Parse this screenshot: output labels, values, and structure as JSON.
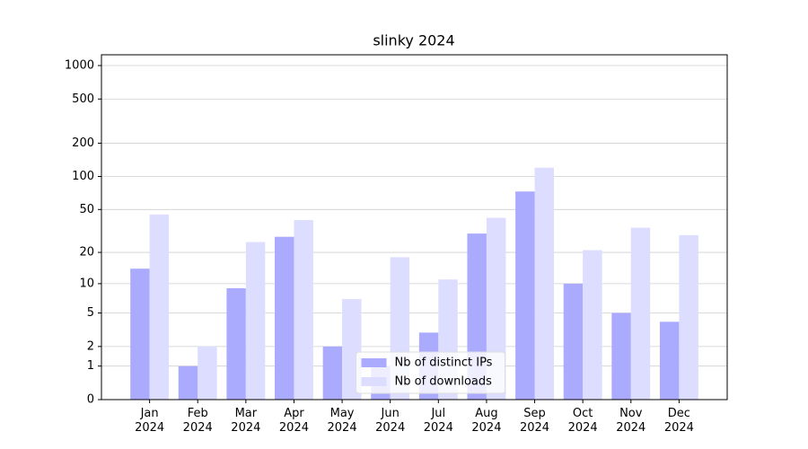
{
  "chart_data": {
    "type": "bar",
    "title": "slinky 2024",
    "categories": [
      "Jan\n2024",
      "Feb\n2024",
      "Mar\n2024",
      "Apr\n2024",
      "May\n2024",
      "Jun\n2024",
      "Jul\n2024",
      "Aug\n2024",
      "Sep\n2024",
      "Oct\n2024",
      "Nov\n2024",
      "Dec\n2024"
    ],
    "series": [
      {
        "name": "Nb of distinct IPs",
        "color": "#aaaaff",
        "values": [
          14,
          1,
          9,
          28,
          2,
          1,
          3,
          30,
          73,
          10,
          5,
          4
        ]
      },
      {
        "name": "Nb of downloads",
        "color": "#ddddff",
        "values": [
          45,
          2,
          25,
          40,
          7,
          18,
          11,
          42,
          120,
          21,
          34,
          29
        ]
      }
    ],
    "yscale": "log1p",
    "ylim": [
      0,
      1250
    ],
    "yticks": [
      0,
      1,
      2,
      5,
      10,
      20,
      50,
      100,
      200,
      500,
      1000
    ],
    "grid": true,
    "legend": "lower center"
  }
}
